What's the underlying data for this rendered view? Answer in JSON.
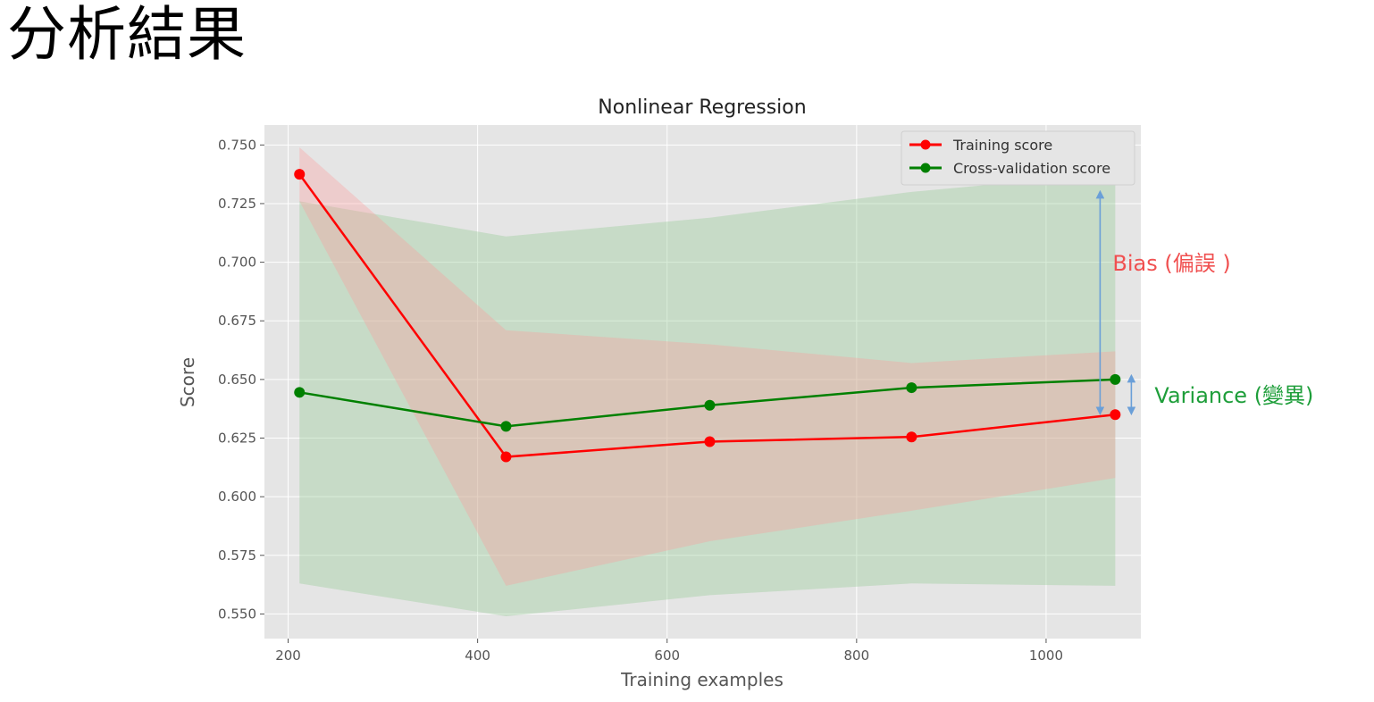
{
  "slide": {
    "title": "分析結果"
  },
  "chart_data": {
    "type": "line",
    "title": "Nonlinear Regression",
    "xlabel": "Training examples",
    "ylabel": "Score",
    "xlim": [
      175,
      1100
    ],
    "ylim": [
      0.5395,
      0.7585
    ],
    "x_ticks": [
      200,
      400,
      600,
      800,
      1000
    ],
    "y_ticks": [
      0.55,
      0.575,
      0.6,
      0.625,
      0.65,
      0.675,
      0.7,
      0.725,
      0.75
    ],
    "x_tick_labels": [
      "200",
      "400",
      "600",
      "800",
      "1000"
    ],
    "y_tick_labels": [
      "0.550",
      "0.575",
      "0.600",
      "0.625",
      "0.650",
      "0.675",
      "0.700",
      "0.725",
      "0.750"
    ],
    "grid": true,
    "legend_position": "top-right",
    "x": [
      212,
      430,
      645,
      858,
      1073
    ],
    "series": [
      {
        "name": "Training score",
        "color": "#ff0000",
        "band_color": "#ff9999",
        "values": [
          0.7375,
          0.617,
          0.6235,
          0.6255,
          0.635
        ],
        "band_upper": [
          0.749,
          0.671,
          0.665,
          0.657,
          0.662
        ],
        "band_lower": [
          0.726,
          0.562,
          0.581,
          0.594,
          0.608
        ]
      },
      {
        "name": "Cross-validation score",
        "color": "#008000",
        "band_color": "#90c890",
        "values": [
          0.6445,
          0.63,
          0.639,
          0.6465,
          0.65
        ],
        "band_upper": [
          0.726,
          0.711,
          0.719,
          0.73,
          0.738
        ],
        "band_lower": [
          0.563,
          0.549,
          0.558,
          0.563,
          0.562
        ]
      }
    ],
    "annotations": [
      {
        "name": "bias",
        "text": "Bias (偏誤 )",
        "color": "#f05050",
        "x": 1057,
        "y_from": 0.635,
        "y_to": 0.7305,
        "arrow_color": "#6a9fd8"
      },
      {
        "name": "variance",
        "text": "Variance (變異)",
        "color": "#1e9e3a",
        "x": 1090,
        "y_from": 0.635,
        "y_to": 0.652,
        "arrow_color": "#6a9fd8"
      }
    ]
  }
}
